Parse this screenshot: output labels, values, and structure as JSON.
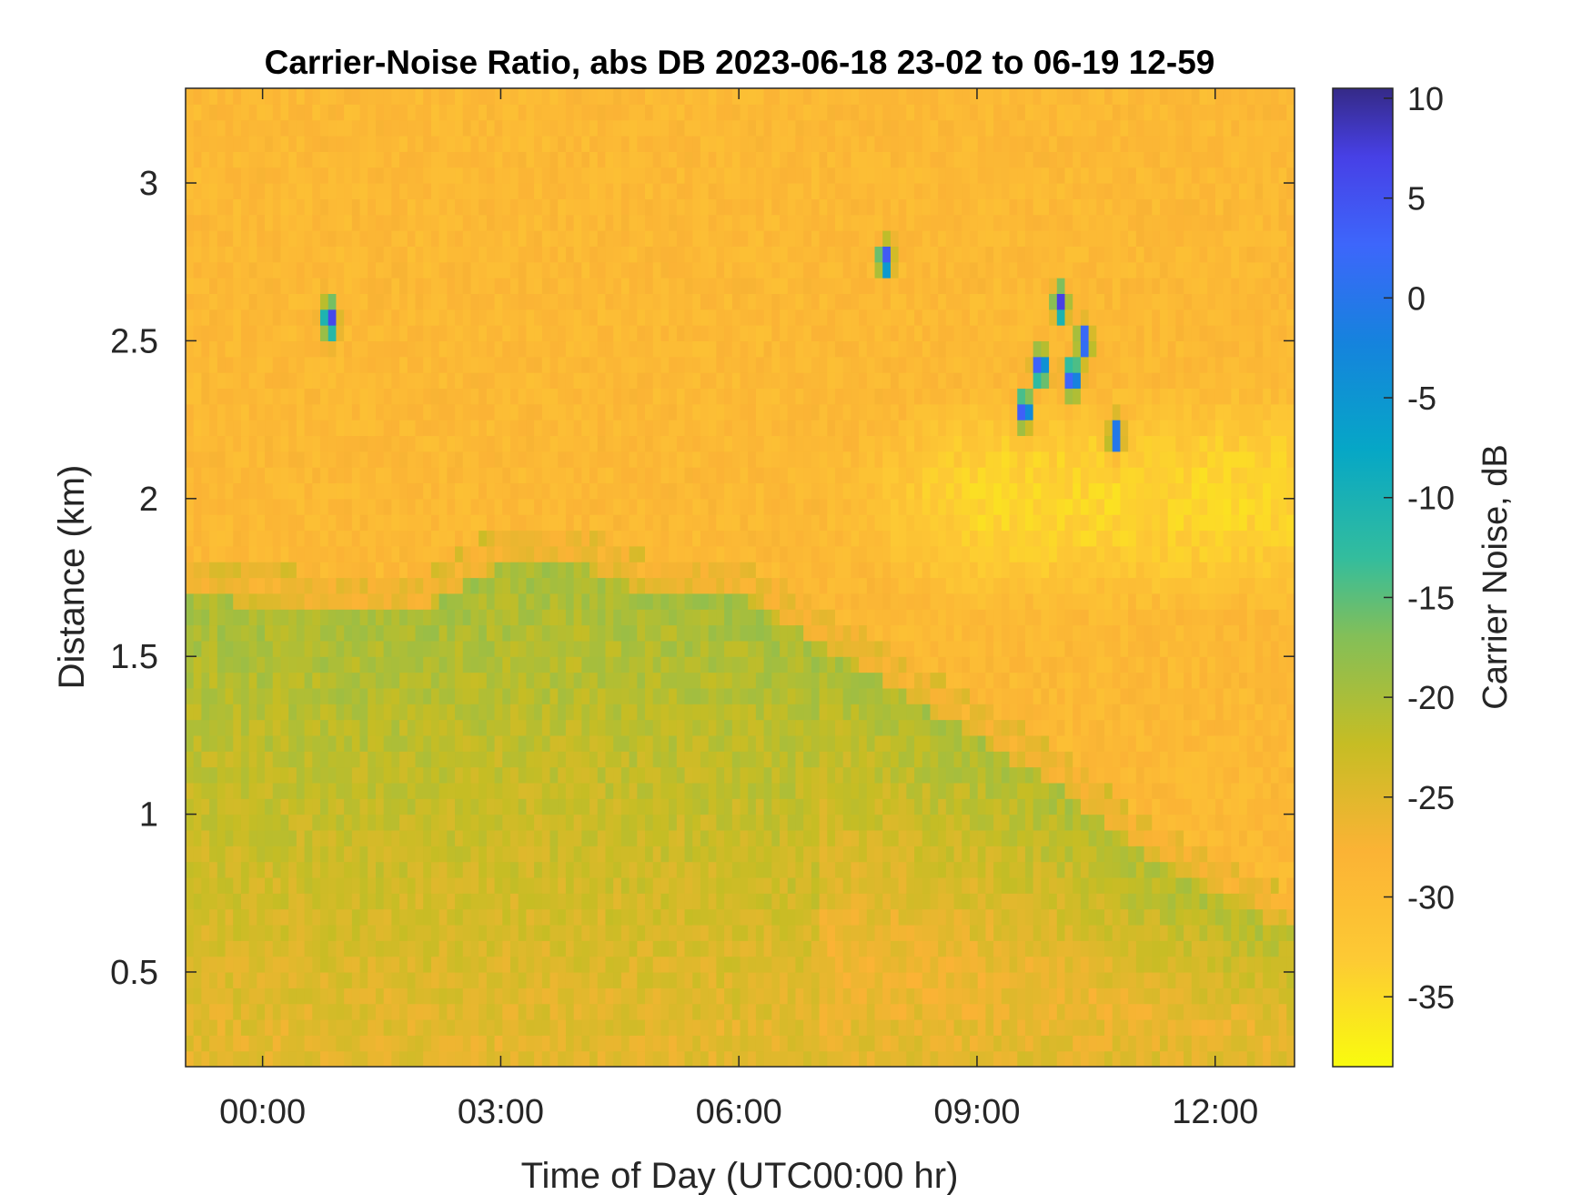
{
  "chart_data": {
    "type": "heatmap",
    "title": "Carrier-Noise Ratio, abs DB 2023-06-18 23-02 to 06-19 12-59",
    "xlabel": "Time of Day (UTC00:00 hr)",
    "ylabel": "Distance (km)",
    "colorbar_label": "Carrier Noise, dB",
    "x_unit": "hours",
    "xlim": [
      -0.97,
      13.0
    ],
    "ylim": [
      0.2,
      3.3
    ],
    "clim": [
      -38.5,
      10.5
    ],
    "x_ticks": [
      {
        "value": 0,
        "label": "00:00"
      },
      {
        "value": 3,
        "label": "03:00"
      },
      {
        "value": 6,
        "label": "06:00"
      },
      {
        "value": 9,
        "label": "09:00"
      },
      {
        "value": 12,
        "label": "12:00"
      }
    ],
    "y_ticks": [
      {
        "value": 0.5,
        "label": "0.5"
      },
      {
        "value": 1.0,
        "label": "1"
      },
      {
        "value": 1.5,
        "label": "1.5"
      },
      {
        "value": 2.0,
        "label": "2"
      },
      {
        "value": 2.5,
        "label": "2.5"
      },
      {
        "value": 3.0,
        "label": "3"
      }
    ],
    "colorbar_ticks": [
      {
        "value": 10,
        "label": "10"
      },
      {
        "value": 5,
        "label": "5"
      },
      {
        "value": 0,
        "label": "0"
      },
      {
        "value": -5,
        "label": "-5"
      },
      {
        "value": -10,
        "label": "-10"
      },
      {
        "value": -15,
        "label": "-15"
      },
      {
        "value": -20,
        "label": "-20"
      },
      {
        "value": -25,
        "label": "-25"
      },
      {
        "value": -30,
        "label": "-30"
      },
      {
        "value": -35,
        "label": "-35"
      }
    ],
    "colormap": "parula",
    "background_db": -31,
    "grid": false,
    "boundary_layer_top_km": [
      {
        "t": -0.97,
        "z": 1.75
      },
      {
        "t": 1.0,
        "z": 1.7
      },
      {
        "t": 2.0,
        "z": 1.7
      },
      {
        "t": 3.0,
        "z": 1.85
      },
      {
        "t": 4.0,
        "z": 1.85
      },
      {
        "t": 5.0,
        "z": 1.75
      },
      {
        "t": 6.0,
        "z": 1.75
      },
      {
        "t": 7.0,
        "z": 1.6
      },
      {
        "t": 8.0,
        "z": 1.45
      },
      {
        "t": 9.0,
        "z": 1.3
      },
      {
        "t": 10.0,
        "z": 1.15
      },
      {
        "t": 11.0,
        "z": 0.95
      },
      {
        "t": 12.0,
        "z": 0.8
      },
      {
        "t": 13.0,
        "z": 0.7
      }
    ],
    "cloud_patches": [
      {
        "t": 0.85,
        "z": 2.57,
        "db": 5
      },
      {
        "t": 7.85,
        "z": 2.76,
        "db": 3
      },
      {
        "t": 9.6,
        "z": 2.28,
        "db": 8
      },
      {
        "t": 9.8,
        "z": 2.42,
        "db": 6
      },
      {
        "t": 10.05,
        "z": 2.62,
        "db": 4
      },
      {
        "t": 10.2,
        "z": 2.38,
        "db": 6
      },
      {
        "t": 10.35,
        "z": 2.5,
        "db": 4
      },
      {
        "t": 10.75,
        "z": 2.2,
        "db": 3
      }
    ]
  }
}
